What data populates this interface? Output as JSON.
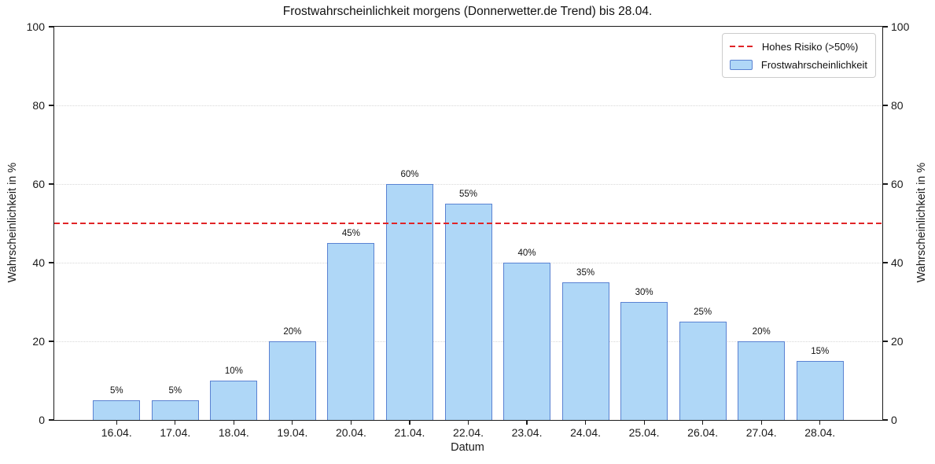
{
  "chart_data": {
    "type": "bar",
    "title": "Frostwahrscheinlichkeit morgens (Donnerwetter.de Trend) bis 28.04.",
    "xlabel": "Datum",
    "ylabel": "Wahrscheinlichkeit in %",
    "categories": [
      "16.04.",
      "17.04.",
      "18.04.",
      "19.04.",
      "20.04.",
      "21.04.",
      "22.04.",
      "23.04.",
      "24.04.",
      "25.04.",
      "26.04.",
      "27.04.",
      "28.04."
    ],
    "values": [
      5,
      5,
      10,
      20,
      45,
      60,
      55,
      40,
      35,
      30,
      25,
      20,
      15
    ],
    "bar_labels": [
      "5%",
      "5%",
      "10%",
      "20%",
      "45%",
      "60%",
      "55%",
      "40%",
      "35%",
      "30%",
      "25%",
      "20%",
      "15%"
    ],
    "ylim": [
      0,
      100
    ],
    "yticks": [
      0,
      20,
      40,
      60,
      80,
      100
    ],
    "grid": "horizontal-dotted",
    "legend_position": "upper-right",
    "series_label": "Frostwahrscheinlichkeit",
    "threshold": {
      "value": 50,
      "label": "Hohes Risiko (>50%)"
    },
    "colors": {
      "bar_fill": "#AFD7F7",
      "bar_edge": "#5A82D2",
      "threshold": "#E02427",
      "grid": "#D8D8D8"
    }
  }
}
